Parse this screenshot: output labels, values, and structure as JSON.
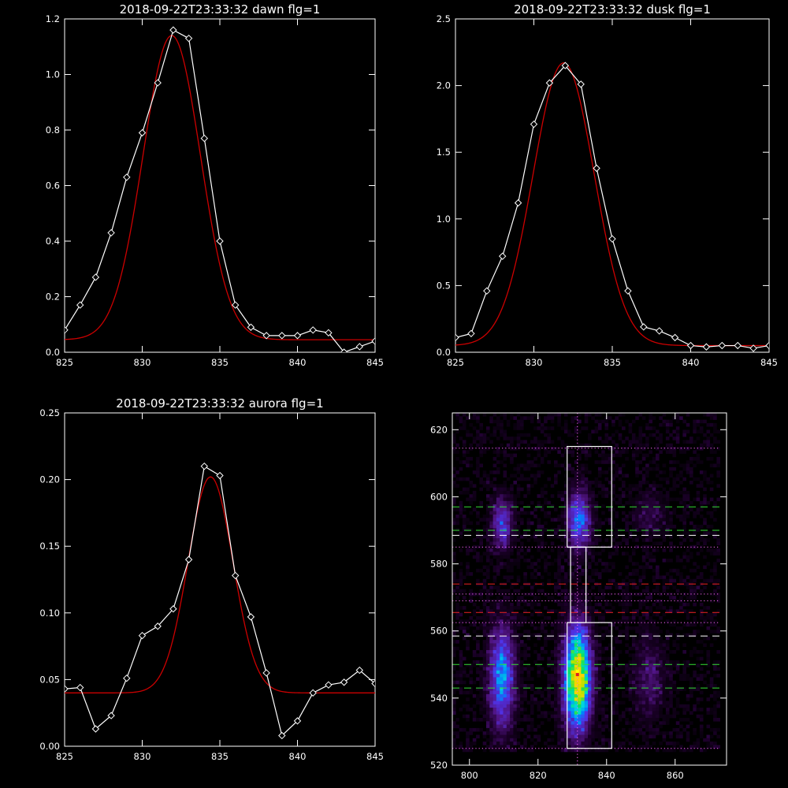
{
  "figure": {
    "background": "#000000",
    "axis_color": "#ffffff",
    "fit_color": "#cc0000",
    "data_color": "#ffffff"
  },
  "chart_data": [
    {
      "type": "line",
      "title": "2018-09-22T23:33:32 dawn flg=1",
      "xlabel": "",
      "ylabel": "",
      "xlim": [
        825,
        845
      ],
      "ylim": [
        0,
        1.2
      ],
      "xticks": [
        825,
        830,
        835,
        840,
        845
      ],
      "xtick_labels": [
        "825",
        "830",
        "835",
        "840",
        "845"
      ],
      "yticks": [
        0,
        0.2,
        0.4,
        0.6,
        0.8,
        1.0,
        1.2
      ],
      "ytick_labels": [
        "0.0",
        "0.2",
        "0.4",
        "0.6",
        "0.8",
        "1.0",
        "1.2"
      ],
      "series": [
        {
          "role": "data",
          "marker": "diamond",
          "color": "#ffffff",
          "x": [
            825,
            826,
            827,
            828,
            829,
            830,
            831,
            832,
            833,
            834,
            835,
            836,
            837,
            838,
            839,
            840,
            841,
            842,
            843,
            844,
            845
          ],
          "y": [
            0.08,
            0.17,
            0.27,
            0.43,
            0.63,
            0.79,
            0.97,
            1.16,
            1.13,
            0.77,
            0.4,
            0.17,
            0.09,
            0.06,
            0.06,
            0.06,
            0.08,
            0.07,
            0.0,
            0.02,
            0.04
          ]
        },
        {
          "role": "fit",
          "color": "#cc0000",
          "shape": "gaussian",
          "amplitude": 1.095,
          "center": 831.9,
          "sigma": 1.85,
          "offset": 0.045
        }
      ]
    },
    {
      "type": "line",
      "title": "2018-09-22T23:33:32 dusk flg=1",
      "xlabel": "",
      "ylabel": "",
      "xlim": [
        825,
        845
      ],
      "ylim": [
        0,
        2.5
      ],
      "xticks": [
        825,
        830,
        835,
        840,
        845
      ],
      "xtick_labels": [
        "825",
        "830",
        "835",
        "840",
        "845"
      ],
      "yticks": [
        0,
        0.5,
        1.0,
        1.5,
        2.0,
        2.5
      ],
      "ytick_labels": [
        "0.0",
        "0.5",
        "1.0",
        "1.5",
        "2.0",
        "2.5"
      ],
      "series": [
        {
          "role": "data",
          "marker": "diamond",
          "color": "#ffffff",
          "x": [
            825,
            826,
            827,
            828,
            829,
            830,
            831,
            832,
            833,
            834,
            835,
            836,
            837,
            838,
            839,
            840,
            841,
            842,
            843,
            844,
            845
          ],
          "y": [
            0.11,
            0.14,
            0.46,
            0.72,
            1.12,
            1.71,
            2.02,
            2.15,
            2.01,
            1.38,
            0.85,
            0.46,
            0.19,
            0.16,
            0.11,
            0.05,
            0.04,
            0.05,
            0.05,
            0.03,
            0.05
          ]
        },
        {
          "role": "fit",
          "color": "#cc0000",
          "shape": "gaussian",
          "amplitude": 2.12,
          "center": 831.9,
          "sigma": 1.95,
          "offset": 0.05
        }
      ]
    },
    {
      "type": "line",
      "title": "2018-09-22T23:33:32 aurora flg=1",
      "xlabel": "",
      "ylabel": "",
      "xlim": [
        825,
        845
      ],
      "ylim": [
        0,
        0.25
      ],
      "xticks": [
        825,
        830,
        835,
        840,
        845
      ],
      "xtick_labels": [
        "825",
        "830",
        "835",
        "840",
        "845"
      ],
      "yticks": [
        0,
        0.05,
        0.1,
        0.15,
        0.2,
        0.25
      ],
      "ytick_labels": [
        "0.00",
        "0.05",
        "0.10",
        "0.15",
        "0.20",
        "0.25"
      ],
      "series": [
        {
          "role": "data",
          "marker": "diamond",
          "color": "#ffffff",
          "x": [
            825,
            826,
            827,
            828,
            829,
            830,
            831,
            832,
            833,
            834,
            835,
            836,
            837,
            838,
            839,
            840,
            841,
            842,
            843,
            844,
            845
          ],
          "y": [
            0.043,
            0.044,
            0.013,
            0.023,
            0.051,
            0.083,
            0.09,
            0.103,
            0.14,
            0.21,
            0.203,
            0.128,
            0.097,
            0.055,
            0.008,
            0.019,
            0.04,
            0.046,
            0.048,
            0.057,
            0.047
          ]
        },
        {
          "role": "fit",
          "color": "#cc0000",
          "shape": "gaussian",
          "amplitude": 0.162,
          "center": 834.4,
          "sigma": 1.45,
          "offset": 0.04
        }
      ]
    },
    {
      "type": "heatmap",
      "title": "",
      "xlabel": "",
      "ylabel": "",
      "xlim": [
        795,
        875
      ],
      "ylim": [
        520,
        625
      ],
      "xticks": [
        800,
        820,
        840,
        860
      ],
      "xtick_labels": [
        "800",
        "820",
        "840",
        "860"
      ],
      "yticks": [
        520,
        540,
        560,
        580,
        600,
        620
      ],
      "ytick_labels": [
        "520",
        "540",
        "560",
        "580",
        "600",
        "620"
      ],
      "image_extent": {
        "x": [
          795,
          873
        ],
        "y": [
          525,
          625
        ]
      },
      "bright_spots": [
        {
          "x": 809.5,
          "y": 546,
          "sx": 2.5,
          "sy": 10,
          "peak": 0.5
        },
        {
          "x": 831.5,
          "y": 546,
          "sx": 2.6,
          "sy": 10,
          "peak": 1.0
        },
        {
          "x": 809.5,
          "y": 592,
          "sx": 2.0,
          "sy": 5,
          "peak": 0.34
        },
        {
          "x": 832.0,
          "y": 593,
          "sx": 2.2,
          "sy": 6,
          "peak": 0.45
        },
        {
          "x": 852.5,
          "y": 546,
          "sx": 3.0,
          "sy": 8,
          "peak": 0.16
        },
        {
          "x": 852.5,
          "y": 595,
          "sx": 3.0,
          "sy": 4,
          "peak": 0.12
        }
      ],
      "vertical_line": {
        "x": 831.5,
        "style": "dotted",
        "color": "#ff66ff"
      },
      "horizontal_lines": [
        {
          "y": 614.5,
          "style": "dotted",
          "color": "#ff66ff"
        },
        {
          "y": 597,
          "style": "dashed",
          "color": "#33dd33"
        },
        {
          "y": 590,
          "style": "dashed",
          "color": "#33dd33"
        },
        {
          "y": 588.5,
          "style": "dashed",
          "color": "#ffffff"
        },
        {
          "y": 585,
          "style": "dotted",
          "color": "#ff66ff"
        },
        {
          "y": 574,
          "style": "dashed",
          "color": "#ee2222"
        },
        {
          "y": 571,
          "style": "dotted",
          "color": "#ff66ff"
        },
        {
          "y": 569,
          "style": "dotted",
          "color": "#ff66ff"
        },
        {
          "y": 565.5,
          "style": "dashed",
          "color": "#ee2222"
        },
        {
          "y": 562.5,
          "style": "dotted",
          "color": "#ff66ff"
        },
        {
          "y": 558.5,
          "style": "dashed",
          "color": "#ffffff"
        },
        {
          "y": 550,
          "style": "dashed",
          "color": "#33dd33"
        },
        {
          "y": 543,
          "style": "dashed",
          "color": "#33dd33"
        },
        {
          "y": 525,
          "style": "dotted",
          "color": "#ff66ff"
        }
      ],
      "boxes": [
        {
          "x": [
            828.5,
            841.5
          ],
          "y": [
            585,
            615
          ],
          "color": "#ffffff"
        },
        {
          "x": [
            829.5,
            834.0
          ],
          "y": [
            562.5,
            585
          ],
          "color": "#ffffff"
        },
        {
          "x": [
            828.5,
            841.5
          ],
          "y": [
            525,
            562.5
          ],
          "color": "#ffffff"
        }
      ],
      "peak_markers": [
        {
          "x": 831.5,
          "y": 548,
          "color": "#ffff00"
        },
        {
          "x": 831.5,
          "y": 547,
          "color": "#dd2222"
        }
      ]
    }
  ]
}
